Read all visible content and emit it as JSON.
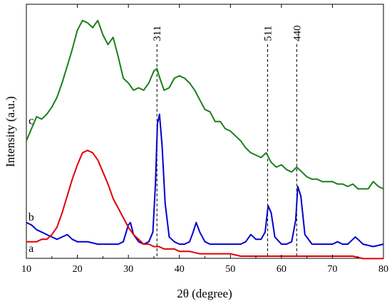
{
  "chart_data": {
    "type": "line",
    "xlabel": "2θ (degree)",
    "ylabel": "Intensity (a.u.)",
    "xlim": [
      10,
      80
    ],
    "ylim": [
      0,
      1
    ],
    "x_ticks": [
      "10",
      "20",
      "30",
      "40",
      "50",
      "60",
      "70",
      "80"
    ],
    "y_ticks_visible": false,
    "grid": false,
    "legend": "none",
    "series": [
      {
        "name": "c",
        "color": "#1a7f1a",
        "x": [
          10,
          11,
          12,
          13,
          14,
          15,
          16,
          17,
          18,
          19,
          20,
          21,
          22,
          23,
          24,
          25,
          26,
          27,
          28,
          29,
          30,
          31,
          32,
          33,
          34,
          35,
          35.6,
          36,
          37,
          38,
          39,
          40,
          41,
          42,
          43,
          44,
          45,
          46,
          47,
          48,
          49,
          50,
          51,
          52,
          53,
          54,
          55,
          56,
          57,
          58,
          59,
          60,
          61,
          62,
          63,
          64,
          65,
          66,
          67,
          68,
          69,
          70,
          71,
          72,
          73,
          74,
          75,
          76,
          77,
          78,
          79,
          80
        ],
        "y": [
          0.48,
          0.53,
          0.58,
          0.57,
          0.59,
          0.62,
          0.66,
          0.72,
          0.79,
          0.86,
          0.94,
          0.98,
          0.97,
          0.95,
          0.98,
          0.92,
          0.88,
          0.91,
          0.83,
          0.74,
          0.72,
          0.69,
          0.7,
          0.69,
          0.72,
          0.77,
          0.78,
          0.75,
          0.69,
          0.7,
          0.74,
          0.75,
          0.74,
          0.72,
          0.69,
          0.65,
          0.61,
          0.6,
          0.56,
          0.56,
          0.53,
          0.52,
          0.5,
          0.48,
          0.45,
          0.43,
          0.42,
          0.41,
          0.43,
          0.39,
          0.37,
          0.38,
          0.36,
          0.35,
          0.37,
          0.35,
          0.33,
          0.32,
          0.32,
          0.31,
          0.31,
          0.31,
          0.3,
          0.3,
          0.29,
          0.3,
          0.28,
          0.28,
          0.28,
          0.31,
          0.29,
          0.28
        ]
      },
      {
        "name": "b",
        "color": "#0000d0",
        "x": [
          10,
          11,
          12,
          13,
          14,
          15,
          16,
          17,
          18,
          19,
          20,
          22,
          24,
          26,
          28,
          29,
          30,
          30.4,
          31,
          32,
          33,
          34,
          34.8,
          35.3,
          35.7,
          36.1,
          36.6,
          37.2,
          38,
          39,
          40,
          41,
          42,
          42.7,
          43.3,
          44,
          45,
          46,
          48,
          50,
          52,
          53,
          54,
          55,
          56,
          56.8,
          57.4,
          58,
          58.7,
          60,
          61,
          62,
          62.8,
          63.2,
          63.8,
          64.6,
          66,
          68,
          70,
          71,
          72,
          73,
          74,
          74.5,
          75,
          76,
          78,
          80
        ],
        "y": [
          0.14,
          0.13,
          0.11,
          0.1,
          0.09,
          0.08,
          0.07,
          0.08,
          0.09,
          0.07,
          0.06,
          0.06,
          0.05,
          0.05,
          0.05,
          0.06,
          0.13,
          0.14,
          0.09,
          0.06,
          0.05,
          0.06,
          0.1,
          0.3,
          0.55,
          0.59,
          0.46,
          0.22,
          0.08,
          0.06,
          0.05,
          0.05,
          0.06,
          0.1,
          0.14,
          0.1,
          0.06,
          0.05,
          0.05,
          0.05,
          0.05,
          0.06,
          0.09,
          0.07,
          0.07,
          0.1,
          0.21,
          0.18,
          0.08,
          0.05,
          0.05,
          0.06,
          0.15,
          0.29,
          0.25,
          0.09,
          0.05,
          0.05,
          0.05,
          0.06,
          0.05,
          0.05,
          0.07,
          0.08,
          0.07,
          0.05,
          0.04,
          0.05
        ]
      },
      {
        "name": "a",
        "color": "#e00000",
        "x": [
          10,
          11,
          12,
          13,
          14,
          15,
          16,
          17,
          18,
          19,
          20,
          21,
          22,
          23,
          24,
          25,
          26,
          27,
          28,
          29,
          30,
          31,
          32,
          33,
          34,
          35,
          36,
          37,
          38,
          39,
          40,
          42,
          44,
          46,
          48,
          50,
          52,
          54,
          56,
          58,
          60,
          62,
          64,
          66,
          68,
          70,
          72,
          74,
          76,
          78,
          80
        ],
        "y": [
          0.06,
          0.06,
          0.06,
          0.07,
          0.07,
          0.09,
          0.12,
          0.18,
          0.25,
          0.32,
          0.38,
          0.43,
          0.44,
          0.43,
          0.4,
          0.35,
          0.3,
          0.24,
          0.2,
          0.16,
          0.12,
          0.09,
          0.07,
          0.05,
          0.05,
          0.04,
          0.04,
          0.03,
          0.03,
          0.03,
          0.02,
          0.02,
          0.01,
          0.01,
          0.01,
          0.01,
          0.0,
          0.0,
          0.0,
          0.0,
          0.0,
          0.0,
          0.0,
          0.0,
          0.0,
          0.0,
          0.0,
          0.0,
          -0.01,
          -0.01,
          -0.01
        ]
      }
    ],
    "reference_lines": [
      {
        "x": 35.6,
        "label": "311"
      },
      {
        "x": 57.3,
        "label": "511"
      },
      {
        "x": 63.0,
        "label": "440"
      }
    ],
    "curve_labels": [
      {
        "text": "c",
        "x": 11.5,
        "y": 0.56
      },
      {
        "text": "b",
        "x": 11.5,
        "y": 0.16
      },
      {
        "text": "a",
        "x": 11.5,
        "y": 0.03
      }
    ]
  }
}
